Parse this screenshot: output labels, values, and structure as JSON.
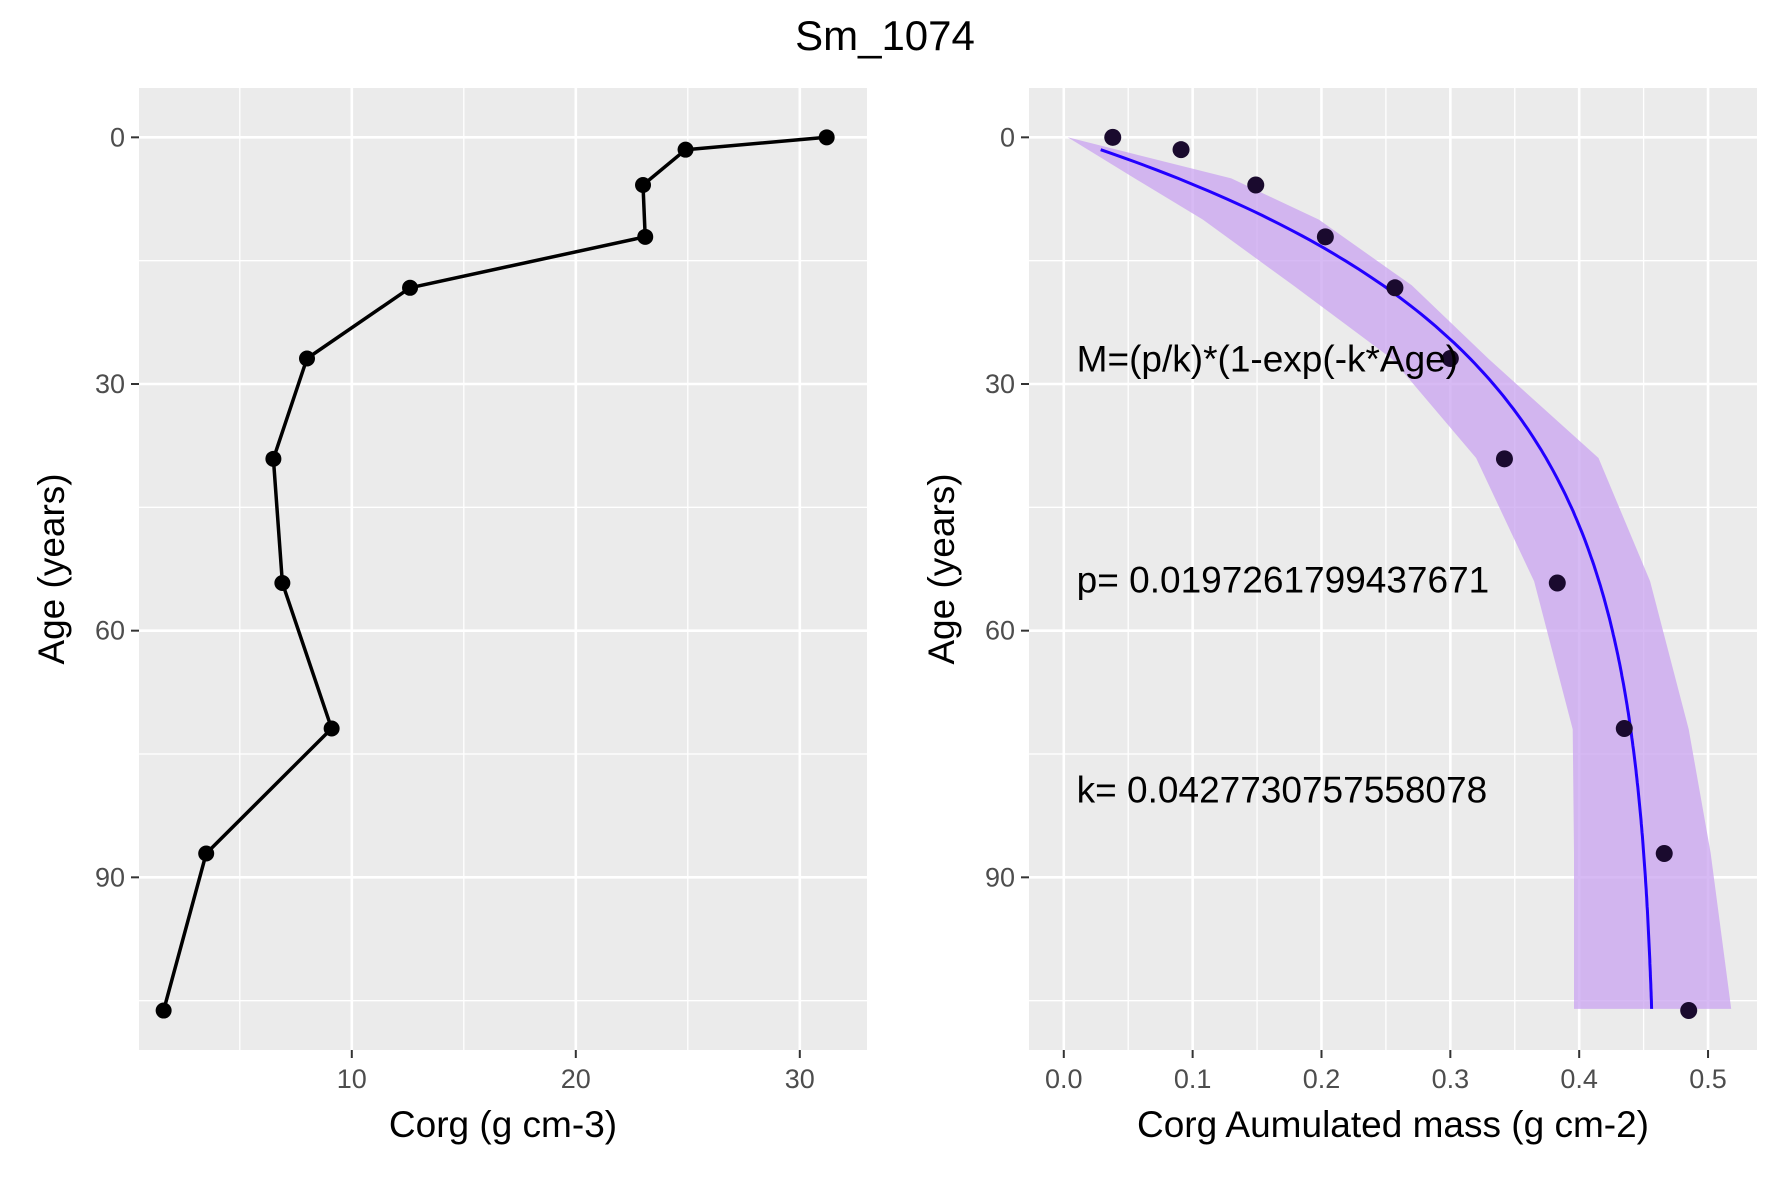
{
  "title": "Sm_1074",
  "chart_data": [
    {
      "type": "line",
      "xlabel": "Corg (g cm-3)",
      "ylabel": "Age (years)",
      "xlim": [
        0.5,
        33.0
      ],
      "ylim": [
        111,
        -6
      ],
      "y_reversed": true,
      "grid": true,
      "xticks": [
        10,
        20,
        30
      ],
      "yticks": [
        0,
        30,
        60,
        90
      ],
      "series": [
        {
          "x": [
            31.2,
            24.9,
            23.0,
            23.1,
            12.6,
            8.0,
            6.5,
            6.9,
            9.1,
            3.5,
            1.6
          ],
          "y": [
            0,
            1.5,
            5.8,
            12.1,
            18.3,
            26.9,
            39.1,
            54.2,
            71.9,
            87.1,
            106.2
          ],
          "color": "#000000",
          "markers": true
        }
      ]
    },
    {
      "type": "scatter",
      "xlabel": "Corg Aumulated mass (g cm-2)",
      "ylabel": "Age (years)",
      "xlim": [
        -0.027,
        0.538
      ],
      "ylim": [
        111,
        -6
      ],
      "y_reversed": true,
      "grid": true,
      "xticks": [
        0.0,
        0.1,
        0.2,
        0.3,
        0.4,
        0.5
      ],
      "yticks": [
        0,
        30,
        60,
        90
      ],
      "points": {
        "x": [
          0.038,
          0.091,
          0.149,
          0.203,
          0.257,
          0.3,
          0.342,
          0.383,
          0.435,
          0.466,
          0.485
        ],
        "y": [
          0,
          1.5,
          5.8,
          12.1,
          18.3,
          26.9,
          39.1,
          54.2,
          71.9,
          87.1,
          106.2
        ],
        "color": "#1a0a2e"
      },
      "fit": {
        "color": "#2200ff",
        "p": 0.0197261799437671,
        "k": 0.0427730757558078
      },
      "confidence_band": {
        "color": "#c9a3f0",
        "y": [
          0,
          5,
          10,
          18,
          27,
          39,
          54,
          72,
          87,
          106
        ],
        "x_low": [
          0.003,
          0.055,
          0.108,
          0.178,
          0.255,
          0.32,
          0.365,
          0.395,
          0.396,
          0.396
        ],
        "x_high": [
          0.003,
          0.13,
          0.198,
          0.27,
          0.33,
          0.415,
          0.455,
          0.485,
          0.502,
          0.518
        ]
      },
      "annotations": [
        {
          "text": "M=(p/k)*(1-exp(-k*Age)",
          "x": 0.01,
          "y": 26.9
        },
        {
          "text": "p= 0.0197261799437671",
          "x": 0.01,
          "y": 53.8
        },
        {
          "text": "k= 0.0427730757558078",
          "x": 0.01,
          "y": 79.3
        }
      ]
    }
  ]
}
